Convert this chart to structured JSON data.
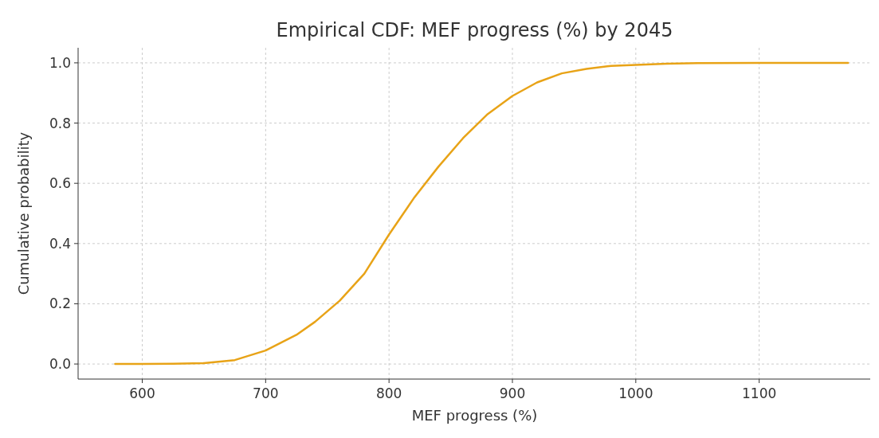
{
  "chart_data": {
    "type": "line",
    "title": "Empirical CDF: MEF progress (%) by 2045",
    "xlabel": "MEF progress (%)",
    "ylabel": "Cumulative probability",
    "x": [
      578,
      600,
      625,
      650,
      675,
      700,
      725,
      740,
      760,
      780,
      800,
      820,
      840,
      860,
      880,
      900,
      920,
      940,
      960,
      980,
      1000,
      1025,
      1050,
      1100,
      1172
    ],
    "series": [
      {
        "color": "#e8a317",
        "values": [
          0,
          0,
          0.001,
          0.003,
          0.013,
          0.045,
          0.097,
          0.14,
          0.21,
          0.3,
          0.43,
          0.55,
          0.655,
          0.75,
          0.83,
          0.89,
          0.935,
          0.965,
          0.98,
          0.99,
          0.993,
          0.997,
          0.999,
          1,
          1
        ]
      }
    ],
    "xlim": [
      548,
      1190
    ],
    "xticks": [
      600,
      700,
      800,
      900,
      1000,
      1100
    ],
    "ylim": [
      -0.05,
      1.05
    ],
    "yticks": [
      {
        "value": 0,
        "label": "0.0"
      },
      {
        "value": 0.2,
        "label": "0.2"
      },
      {
        "value": 0.4,
        "label": "0.4"
      },
      {
        "value": 0.6,
        "label": "0.6"
      },
      {
        "value": 0.8,
        "label": "0.8"
      },
      {
        "value": 1,
        "label": "1.0"
      }
    ],
    "grid": true,
    "line_style": "solid"
  }
}
